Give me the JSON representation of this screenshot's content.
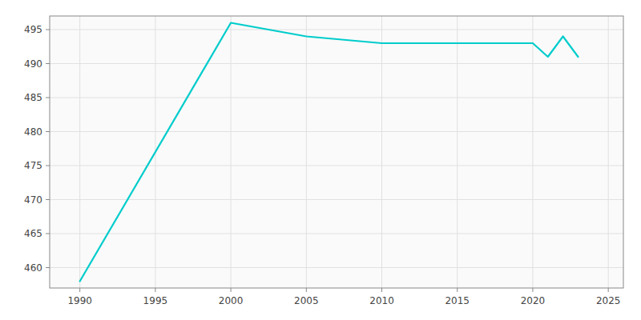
{
  "chart_data": {
    "type": "line",
    "x": [
      1990,
      2000,
      2005,
      2010,
      2015,
      2020,
      2021,
      2022,
      2023
    ],
    "values": [
      458,
      496,
      494,
      493,
      493,
      493,
      491,
      494,
      491
    ],
    "color": "#00CCCC",
    "xlim": [
      1988,
      2026
    ],
    "ylim": [
      457,
      497
    ],
    "xticks": [
      1990,
      1995,
      2000,
      2005,
      2010,
      2015,
      2020,
      2025
    ],
    "yticks": [
      460,
      465,
      470,
      475,
      480,
      485,
      490,
      495
    ],
    "grid": true
  }
}
